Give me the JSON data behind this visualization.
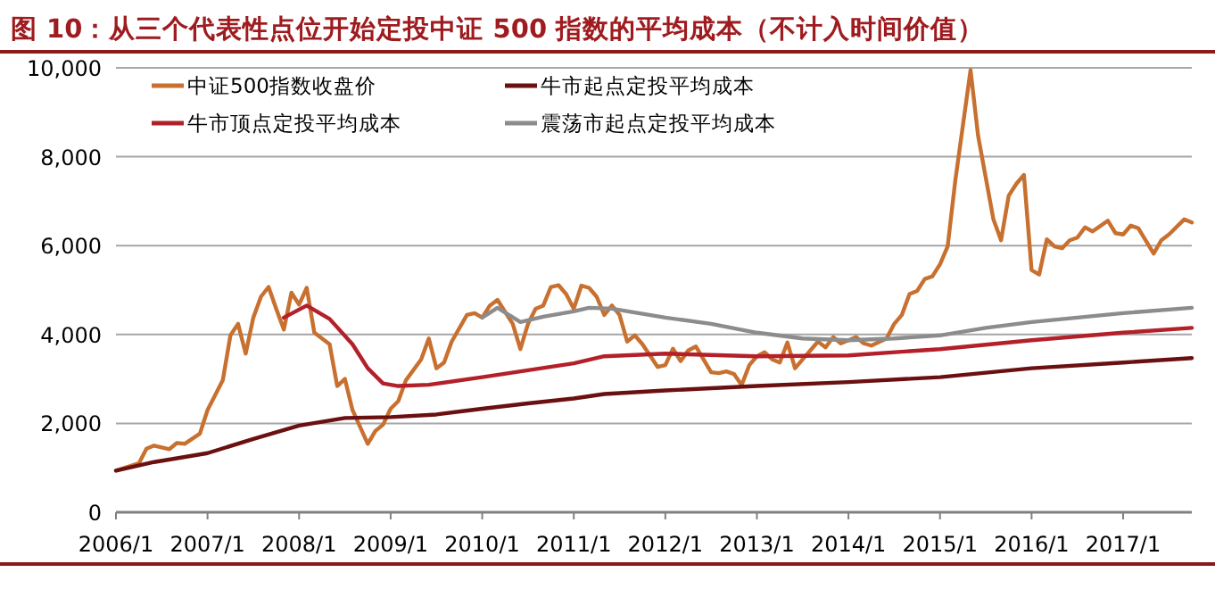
{
  "chart_data": {
    "type": "line",
    "title": "图 10：从三个代表性点位开始定投中证 500 指数的平均成本（不计入时间价值）",
    "xlim": [
      "2006-01",
      "2017-10"
    ],
    "xticks": [
      {
        "value": "2006-01",
        "label": "2006/1"
      },
      {
        "value": "2007-01",
        "label": "2007/1"
      },
      {
        "value": "2008-01",
        "label": "2008/1"
      },
      {
        "value": "2009-01",
        "label": "2009/1"
      },
      {
        "value": "2010-01",
        "label": "2010/1"
      },
      {
        "value": "2011-01",
        "label": "2011/1"
      },
      {
        "value": "2012-01",
        "label": "2012/1"
      },
      {
        "value": "2013-01",
        "label": "2013/1"
      },
      {
        "value": "2014-01",
        "label": "2014/1"
      },
      {
        "value": "2015-01",
        "label": "2015/1"
      },
      {
        "value": "2016-01",
        "label": "2016/1"
      },
      {
        "value": "2017-01",
        "label": "2017/1"
      }
    ],
    "ylim": [
      0,
      10000
    ],
    "yticks": [
      {
        "value": 0,
        "label": "0"
      },
      {
        "value": 2000,
        "label": "2,000"
      },
      {
        "value": 4000,
        "label": "4,000"
      },
      {
        "value": 6000,
        "label": "6,000"
      },
      {
        "value": 8000,
        "label": "8,000"
      },
      {
        "value": 10000,
        "label": "10,000"
      }
    ],
    "grid": "y",
    "legend": "top",
    "marker": "none",
    "line_style": "solid",
    "series": [
      {
        "name": "中证500指数收盘价",
        "color": "#c8702f",
        "x": [
          "2006-01",
          "2006-04",
          "2006-05",
          "2006-06",
          "2006-08",
          "2006-09",
          "2006-10",
          "2006-12",
          "2007-01",
          "2007-03",
          "2007-04",
          "2007-05",
          "2007-06",
          "2007-07",
          "2007-08",
          "2007-09",
          "2007-10",
          "2007-11",
          "2007-12",
          "2008-01",
          "2008-02",
          "2008-03",
          "2008-05",
          "2008-06",
          "2008-07",
          "2008-08",
          "2008-10",
          "2008-11",
          "2008-12",
          "2009-01",
          "2009-02",
          "2009-03",
          "2009-05",
          "2009-06",
          "2009-07",
          "2009-08",
          "2009-09",
          "2009-11",
          "2009-12",
          "2010-01",
          "2010-02",
          "2010-03",
          "2010-05",
          "2010-06",
          "2010-07",
          "2010-08",
          "2010-09",
          "2010-10",
          "2010-11",
          "2010-12",
          "2011-01",
          "2011-02",
          "2011-03",
          "2011-04",
          "2011-05",
          "2011-06",
          "2011-07",
          "2011-08",
          "2011-09",
          "2011-10",
          "2011-12",
          "2012-01",
          "2012-02",
          "2012-03",
          "2012-04",
          "2012-05",
          "2012-06",
          "2012-07",
          "2012-08",
          "2012-09",
          "2012-10",
          "2012-11",
          "2012-12",
          "2013-01",
          "2013-02",
          "2013-03",
          "2013-04",
          "2013-05",
          "2013-06",
          "2013-07",
          "2013-08",
          "2013-09",
          "2013-10",
          "2013-11",
          "2013-12",
          "2014-02",
          "2014-03",
          "2014-04",
          "2014-06",
          "2014-07",
          "2014-08",
          "2014-09",
          "2014-10",
          "2014-11",
          "2014-12",
          "2015-01",
          "2015-02",
          "2015-03",
          "2015-05",
          "2015-06",
          "2015-08",
          "2015-09",
          "2015-10",
          "2015-11",
          "2015-12",
          "2016-01",
          "2016-02",
          "2016-03",
          "2016-04",
          "2016-05",
          "2016-06",
          "2016-07",
          "2016-08",
          "2016-09",
          "2016-11",
          "2016-12",
          "2017-01",
          "2017-02",
          "2017-03",
          "2017-05",
          "2017-06",
          "2017-07",
          "2017-09",
          "2017-10"
        ],
        "values": [
          937,
          1100,
          1430,
          1500,
          1420,
          1560,
          1540,
          1770,
          2300,
          2970,
          3980,
          4240,
          3570,
          4380,
          4850,
          5070,
          4580,
          4110,
          4940,
          4670,
          5050,
          4040,
          3780,
          2840,
          3000,
          2300,
          1540,
          1830,
          1970,
          2330,
          2500,
          2970,
          3440,
          3910,
          3240,
          3370,
          3840,
          4440,
          4480,
          4380,
          4650,
          4780,
          4240,
          3670,
          4240,
          4580,
          4650,
          5070,
          5110,
          4910,
          4580,
          5100,
          5050,
          4850,
          4440,
          4650,
          4440,
          3840,
          3980,
          3780,
          3270,
          3310,
          3680,
          3400,
          3640,
          3730,
          3440,
          3150,
          3130,
          3170,
          3110,
          2860,
          3310,
          3510,
          3600,
          3440,
          3370,
          3820,
          3240,
          3440,
          3640,
          3840,
          3710,
          3940,
          3800,
          3940,
          3800,
          3750,
          3910,
          4240,
          4440,
          4910,
          4980,
          5250,
          5310,
          5580,
          5980,
          7460,
          9950,
          8460,
          6590,
          6120,
          7120,
          7390,
          7590,
          5450,
          5350,
          6140,
          5980,
          5940,
          6120,
          6180,
          6410,
          6320,
          6560,
          6280,
          6250,
          6450,
          6390,
          5820,
          6120,
          6250,
          6590,
          6520
        ]
      },
      {
        "name": "牛市起点定投平均成本",
        "color": "#6b1010",
        "x": [
          "2006-01",
          "2006-06",
          "2007-01",
          "2007-07",
          "2008-01",
          "2008-07",
          "2009-01",
          "2009-07",
          "2010-01",
          "2010-07",
          "2011-01",
          "2011-05",
          "2012-01",
          "2013-01",
          "2014-01",
          "2015-01",
          "2016-01",
          "2017-01",
          "2017-10"
        ],
        "values": [
          937,
          1130,
          1330,
          1650,
          1950,
          2120,
          2140,
          2200,
          2330,
          2450,
          2560,
          2660,
          2740,
          2840,
          2930,
          3040,
          3240,
          3370,
          3470
        ]
      },
      {
        "name": "牛市顶点定投平均成本",
        "color": "#b3202a",
        "x": [
          "2007-11",
          "2008-01",
          "2008-02",
          "2008-05",
          "2008-08",
          "2008-10",
          "2008-12",
          "2009-02",
          "2009-06",
          "2010-01",
          "2011-01",
          "2011-05",
          "2012-01",
          "2013-01",
          "2014-01",
          "2015-01",
          "2016-01",
          "2017-01",
          "2017-10"
        ],
        "values": [
          4380,
          4560,
          4650,
          4350,
          3780,
          3240,
          2900,
          2840,
          2870,
          3040,
          3350,
          3510,
          3570,
          3510,
          3530,
          3670,
          3870,
          4040,
          4150
        ]
      },
      {
        "name": "震荡市起点定投平均成本",
        "color": "#8c8c8c",
        "x": [
          "2010-01",
          "2010-03",
          "2010-06",
          "2010-09",
          "2011-01",
          "2011-03",
          "2011-06",
          "2012-01",
          "2012-07",
          "2013-01",
          "2013-07",
          "2014-01",
          "2014-07",
          "2015-01",
          "2015-07",
          "2016-01",
          "2017-01",
          "2017-10"
        ],
        "values": [
          4380,
          4600,
          4280,
          4400,
          4520,
          4600,
          4580,
          4380,
          4240,
          4040,
          3910,
          3870,
          3910,
          3980,
          4150,
          4280,
          4480,
          4600
        ]
      }
    ]
  }
}
